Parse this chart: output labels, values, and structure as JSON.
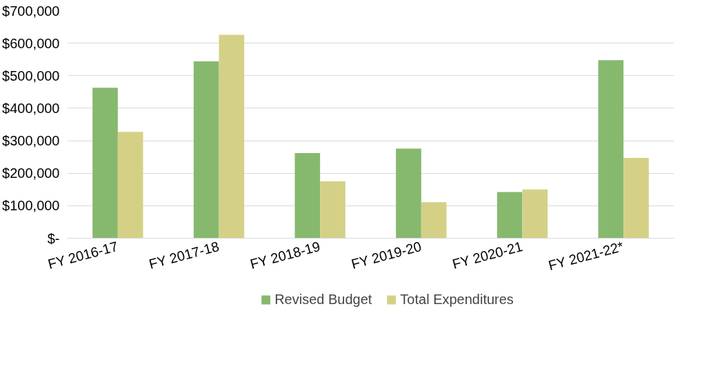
{
  "chart_data": {
    "type": "bar",
    "categories": [
      "FY 2016-17",
      "FY 2017-18",
      "FY 2018-19",
      "FY 2019-20",
      "FY 2020-21",
      "FY 2021-22*"
    ],
    "series": [
      {
        "name": "Revised Budget",
        "color": "#86b96e",
        "values": [
          463000,
          544000,
          262000,
          276000,
          142000,
          548000
        ]
      },
      {
        "name": "Total Expenditures",
        "color": "#d4d187",
        "values": [
          327000,
          626000,
          175000,
          111000,
          150000,
          247000
        ]
      }
    ],
    "ylim": [
      0,
      700000
    ],
    "yticks": [
      {
        "value": 0,
        "label": "$-"
      },
      {
        "value": 100000,
        "label": "$100,000"
      },
      {
        "value": 200000,
        "label": "$200,000"
      },
      {
        "value": 300000,
        "label": "$300,000"
      },
      {
        "value": 400000,
        "label": "$400,000"
      },
      {
        "value": 500000,
        "label": "$500,000"
      },
      {
        "value": 600000,
        "label": "$600,000"
      },
      {
        "value": 700000,
        "label": "$700,000"
      }
    ],
    "grid": "y",
    "legend": "bottom"
  }
}
